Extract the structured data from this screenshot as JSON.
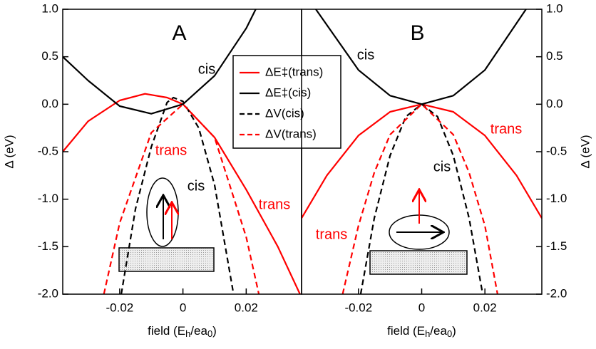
{
  "chart_data": [
    {
      "type": "line",
      "panel_label": "A",
      "xlabel": [
        "field (E",
        "h",
        "/ea",
        "0",
        ")"
      ],
      "ylabel": "Δ (eV)",
      "xlim": [
        -0.038,
        0.0375
      ],
      "ylim": [
        -2.0,
        1.0
      ],
      "xticks": [
        -0.02,
        0,
        0.02
      ],
      "yticks": [
        {
          "value": -2.0,
          "label": "-2.0"
        },
        -1.5,
        {
          "value": -1.0,
          "label": "-1.0"
        },
        -0.5,
        {
          "value": 0.0,
          "label": "0.0"
        },
        0.5,
        {
          "value": 1.0,
          "label": "1.0"
        }
      ],
      "legend": true,
      "series": [
        {
          "name": "ΔE‡(trans)",
          "color": "#ff0000",
          "dash": false,
          "x": [
            -0.038,
            -0.03,
            -0.02,
            -0.012,
            -0.005,
            0,
            0.01,
            0.02,
            0.03,
            0.037
          ],
          "values": [
            -0.5,
            -0.18,
            0.04,
            0.11,
            0.07,
            0.0,
            -0.35,
            -0.9,
            -1.5,
            -2.0
          ]
        },
        {
          "name": "ΔE‡(cis)",
          "color": "#000000",
          "dash": false,
          "x": [
            -0.038,
            -0.03,
            -0.02,
            -0.01,
            0,
            0.01,
            0.02,
            0.023
          ],
          "values": [
            0.5,
            0.25,
            -0.02,
            -0.1,
            0.0,
            0.3,
            0.8,
            1.0
          ]
        },
        {
          "name": "ΔV(cis)",
          "color": "#000000",
          "dash": true,
          "x": [
            -0.0195,
            -0.015,
            -0.01,
            -0.005,
            -0.003,
            0,
            0.005,
            0.01,
            0.016
          ],
          "values": [
            -2.0,
            -1.1,
            -0.45,
            0.02,
            0.07,
            0.03,
            -0.25,
            -0.85,
            -2.0
          ]
        },
        {
          "name": "ΔV(trans)",
          "color": "#ff0000",
          "dash": true,
          "x": [
            -0.025,
            -0.02,
            -0.01,
            0,
            0.01,
            0.02,
            0.024
          ],
          "values": [
            -2.0,
            -1.25,
            -0.3,
            0.0,
            -0.35,
            -1.4,
            -2.0
          ]
        }
      ],
      "annotations": [
        {
          "text": "cis",
          "color": "#000000"
        },
        {
          "text": "trans",
          "color": "#ff0000"
        },
        {
          "text": "cis",
          "color": "#000000"
        },
        {
          "text": "trans",
          "color": "#ff0000"
        }
      ]
    },
    {
      "type": "line",
      "panel_label": "B",
      "xlabel": [
        "field (E",
        "h",
        "/ea",
        "0",
        ")"
      ],
      "ylabel": "Δ (eV)",
      "xlim": [
        -0.038,
        0.038
      ],
      "ylim": [
        -2.0,
        1.0
      ],
      "xticks": [
        -0.02,
        0,
        0.02
      ],
      "yticks": [
        {
          "value": -2.0,
          "label": "-2.0"
        },
        -1.5,
        {
          "value": -1.0,
          "label": "-1.0"
        },
        -0.5,
        {
          "value": 0.0,
          "label": "0.0"
        },
        0.5,
        {
          "value": 1.0,
          "label": "1.0"
        }
      ],
      "legend": false,
      "series": [
        {
          "color": "#ff0000",
          "dash": false,
          "x": [
            -0.038,
            -0.03,
            -0.02,
            -0.01,
            0,
            0.01,
            0.02,
            0.03,
            0.038
          ],
          "values": [
            -1.2,
            -0.75,
            -0.33,
            -0.08,
            0.0,
            -0.08,
            -0.33,
            -0.75,
            -1.2
          ]
        },
        {
          "color": "#000000",
          "dash": false,
          "x": [
            -0.0335,
            -0.02,
            -0.01,
            0,
            0.01,
            0.02,
            0.033
          ],
          "values": [
            1.0,
            0.36,
            0.09,
            0.0,
            0.09,
            0.36,
            1.0
          ]
        },
        {
          "color": "#000000",
          "dash": true,
          "x": [
            -0.0193,
            -0.015,
            -0.01,
            -0.005,
            0,
            0.005,
            0.01,
            0.015,
            0.0193
          ],
          "values": [
            -2.0,
            -1.2,
            -0.54,
            -0.13,
            0.0,
            -0.13,
            -0.54,
            -1.2,
            -2.0
          ]
        },
        {
          "color": "#ff0000",
          "dash": true,
          "x": [
            -0.025,
            -0.02,
            -0.015,
            -0.01,
            0,
            0.01,
            0.015,
            0.02,
            0.024
          ],
          "values": [
            -2.0,
            -1.28,
            -0.72,
            -0.32,
            0.0,
            -0.32,
            -0.72,
            -1.28,
            -2.0
          ]
        }
      ],
      "annotations": [
        {
          "text": "cis",
          "color": "#000000"
        },
        {
          "text": "trans",
          "color": "#ff0000"
        },
        {
          "text": "cis",
          "color": "#000000"
        },
        {
          "text": "trans",
          "color": "#ff0000"
        }
      ]
    }
  ]
}
